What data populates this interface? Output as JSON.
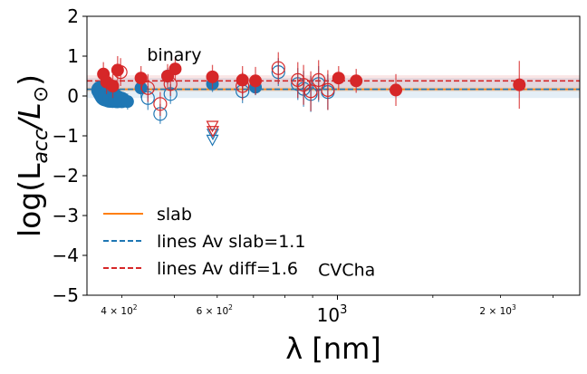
{
  "chart_data": {
    "type": "scatter",
    "title": "",
    "xlabel": "λ [nm]",
    "ylabel_parts": {
      "prefix": "log(L",
      "sub": "acc",
      "mid": "/L",
      "odot": "⊙",
      "suffix": ")"
    },
    "xscale": "log",
    "xlim": [
      345,
      2800
    ],
    "ylim": [
      -5,
      2
    ],
    "yticks": [
      2,
      1,
      0,
      -1,
      -2,
      -3,
      -4,
      -5
    ],
    "yticklabels": [
      "2",
      "1",
      "0",
      "−1",
      "−2",
      "−3",
      "−4",
      "−5"
    ],
    "xticks_major": [
      {
        "value": 1000,
        "label": "10",
        "exp": "3"
      }
    ],
    "xticks_minor": [
      {
        "value": 400,
        "mant": "4 × 10",
        "exp": "2"
      },
      {
        "value": 600,
        "mant": "6 × 10",
        "exp": "2"
      },
      {
        "value": 2000,
        "mant": "2 × 10",
        "exp": "3"
      }
    ],
    "reference_lines": [
      {
        "name": "slab",
        "y": 0.17,
        "band": [
          0.12,
          0.22
        ],
        "color": "#ff7f0e",
        "style": "solid"
      },
      {
        "name": "lines Av slab=1.1",
        "y": 0.17,
        "band": [
          -0.05,
          0.45
        ],
        "color": "#1f77b4",
        "style": "dashed"
      },
      {
        "name": "lines Av diff=1.6",
        "y": 0.38,
        "band": [
          0.22,
          0.52
        ],
        "color": "#d62728",
        "style": "dashed"
      }
    ],
    "series": [
      {
        "name": "lines Av slab=1.1",
        "color": "#1f77b4",
        "filled": [
          {
            "x": 365,
            "y": 0.15,
            "err": 0.2,
            "s": 10
          },
          {
            "x": 370,
            "y": 0.1,
            "err": 0.2,
            "s": 12
          },
          {
            "x": 375,
            "y": 0.05,
            "err": 0.2,
            "s": 14
          },
          {
            "x": 380,
            "y": 0.0,
            "err": 0.2,
            "s": 13
          },
          {
            "x": 385,
            "y": -0.05,
            "err": 0.2,
            "s": 11
          },
          {
            "x": 392,
            "y": -0.08,
            "err": 0.2,
            "s": 10
          },
          {
            "x": 400,
            "y": -0.1,
            "err": 0.2,
            "s": 9
          },
          {
            "x": 410,
            "y": -0.14,
            "err": 0.2,
            "s": 7
          },
          {
            "x": 434,
            "y": 0.2,
            "err": 0.25,
            "s": 7
          },
          {
            "x": 486,
            "y": 0.5,
            "err": 0.2,
            "s": 7
          },
          {
            "x": 588,
            "y": 0.3,
            "err": 0.2,
            "s": 7
          },
          {
            "x": 706,
            "y": 0.22,
            "err": 0.2,
            "s": 7
          }
        ],
        "open": [
          {
            "x": 447,
            "y": -0.05,
            "err": 0.3
          },
          {
            "x": 471,
            "y": -0.45,
            "err": 0.25
          },
          {
            "x": 492,
            "y": 0.05,
            "err": 0.25
          },
          {
            "x": 668,
            "y": 0.12,
            "err": 0.3
          },
          {
            "x": 778,
            "y": 0.6,
            "err": 0.35
          },
          {
            "x": 845,
            "y": 0.3,
            "err": 0.4
          },
          {
            "x": 866,
            "y": 0.18,
            "err": 0.45
          },
          {
            "x": 893,
            "y": 0.05,
            "err": 0.45
          },
          {
            "x": 923,
            "y": 0.3,
            "err": 0.45
          },
          {
            "x": 960,
            "y": 0.1,
            "err": 0.45
          }
        ],
        "upper_limits": [
          {
            "x": 588,
            "y": -1.1
          },
          {
            "x": 589,
            "y": -0.95
          }
        ]
      },
      {
        "name": "lines Av diff=1.6",
        "color": "#d62728",
        "filled": [
          {
            "x": 370,
            "y": 0.55,
            "err": 0.3,
            "s": 7
          },
          {
            "x": 375,
            "y": 0.35,
            "err": 0.3,
            "s": 7
          },
          {
            "x": 385,
            "y": 0.25,
            "err": 0.3,
            "s": 7
          },
          {
            "x": 393,
            "y": 0.65,
            "err": 0.35,
            "s": 7
          },
          {
            "x": 434,
            "y": 0.45,
            "err": 0.3,
            "s": 7
          },
          {
            "x": 486,
            "y": 0.5,
            "err": 0.3,
            "s": 7
          },
          {
            "x": 502,
            "y": 0.68,
            "err": 0.3,
            "s": 7
          },
          {
            "x": 588,
            "y": 0.48,
            "err": 0.3,
            "s": 7
          },
          {
            "x": 668,
            "y": 0.4,
            "err": 0.35,
            "s": 7
          },
          {
            "x": 706,
            "y": 0.38,
            "err": 0.35,
            "s": 7
          },
          {
            "x": 1005,
            "y": 0.45,
            "err": 0.3,
            "s": 7
          },
          {
            "x": 1083,
            "y": 0.38,
            "err": 0.3,
            "s": 7
          },
          {
            "x": 1282,
            "y": 0.15,
            "err": 0.4,
            "s": 7
          },
          {
            "x": 2166,
            "y": 0.28,
            "err": 0.6,
            "s": 7
          }
        ],
        "open": [
          {
            "x": 398,
            "y": 0.6,
            "err": 0.35
          },
          {
            "x": 447,
            "y": 0.2,
            "err": 0.35
          },
          {
            "x": 471,
            "y": -0.2,
            "err": 0.3
          },
          {
            "x": 492,
            "y": 0.3,
            "err": 0.3
          },
          {
            "x": 668,
            "y": 0.25,
            "err": 0.35
          },
          {
            "x": 778,
            "y": 0.7,
            "err": 0.4
          },
          {
            "x": 845,
            "y": 0.4,
            "err": 0.45
          },
          {
            "x": 866,
            "y": 0.28,
            "err": 0.5
          },
          {
            "x": 893,
            "y": 0.12,
            "err": 0.5
          },
          {
            "x": 923,
            "y": 0.4,
            "err": 0.5
          },
          {
            "x": 960,
            "y": 0.15,
            "err": 0.5
          }
        ],
        "upper_limits": [
          {
            "x": 588,
            "y": -0.75
          },
          {
            "x": 589,
            "y": -0.88
          }
        ]
      }
    ],
    "legend": {
      "placement": "lower-left",
      "entries": [
        {
          "label": "slab",
          "color": "#ff7f0e",
          "style": "solid"
        },
        {
          "label": "lines Av slab=1.1",
          "color": "#1f77b4",
          "style": "dashed"
        },
        {
          "label": "lines Av diff=1.6",
          "color": "#d62728",
          "style": "dashed"
        }
      ]
    },
    "annotations": [
      {
        "name": "binary-label",
        "text": "binary",
        "x": 500,
        "y": 1.05
      },
      {
        "name": "object-label",
        "text": "CVCha",
        "x": 1040,
        "y": -4.35
      }
    ]
  }
}
